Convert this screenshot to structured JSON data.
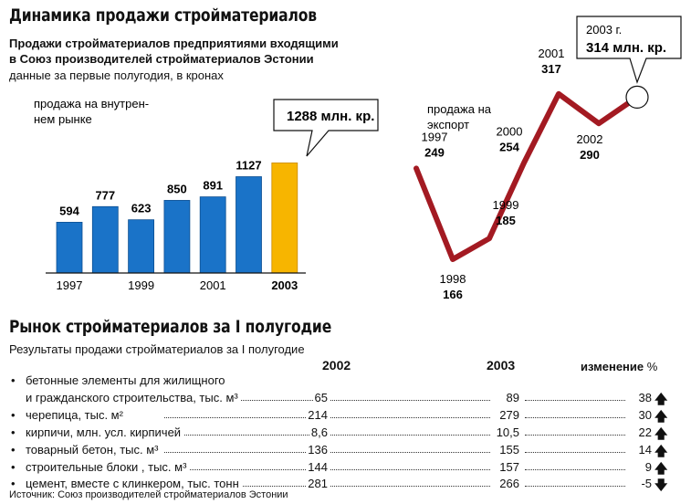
{
  "header": {
    "title": "Динамика продажи стройматериалов",
    "subtitle_line1": "Продажи стройматериалов предприятиями входящими",
    "subtitle_line2": "в Союз производителей стройматериалов Эстонии",
    "note": "данные за первые полугодия, в кронах"
  },
  "chart_data": [
    {
      "type": "bar",
      "label_line1": "продажа на внутрен-",
      "label_line2": "нем рынке",
      "categories": [
        "1997",
        "1998",
        "1999",
        "2000",
        "2001",
        "2002",
        "2003"
      ],
      "x_tick_labels": [
        "1997",
        "",
        "1999",
        "",
        "2001",
        "",
        "2003"
      ],
      "values": [
        594,
        777,
        623,
        850,
        891,
        1127,
        1288
      ],
      "value_labels": [
        "594",
        "777",
        "623",
        "850",
        "891",
        "1127",
        ""
      ],
      "callout": "1288 млн. кр.",
      "ylim": [
        0,
        1300
      ],
      "colors": {
        "bar": "#1a73c8",
        "highlight": "#f7b500"
      }
    },
    {
      "type": "line",
      "label_line1": "продажа на",
      "label_line2": "экспорт",
      "x": [
        "1997",
        "1998",
        "1999",
        "2000",
        "2001",
        "2002",
        "2003"
      ],
      "y": [
        249,
        166,
        185,
        254,
        317,
        290,
        314
      ],
      "point_labels": [
        {
          "year": "1997",
          "value": "249"
        },
        {
          "year": "1998",
          "value": "166"
        },
        {
          "year": "1999",
          "value": "185"
        },
        {
          "year": "2000",
          "value": "254"
        },
        {
          "year": "2001",
          "value": "317"
        },
        {
          "year": "2002",
          "value": "290"
        },
        {
          "year": "",
          "value": ""
        }
      ],
      "callout_line1": "2003 г.",
      "callout_line2": "314 млн. кр.",
      "ylim": [
        150,
        330
      ],
      "colors": {
        "line": "#a31a22"
      }
    }
  ],
  "market": {
    "title": "Рынок стройматериалов за I полугодие",
    "subtitle": "Результаты продажи стройматериалов за I полугодие",
    "col_2002": "2002",
    "col_2003": "2003",
    "col_change": "изменение",
    "col_change_unit": "%",
    "rows": [
      {
        "label": "бетонные элементы для жилищного",
        "bullet": true
      },
      {
        "label": "и гражданского строительства, тыс. м³",
        "v2002": "65",
        "v2003": "89",
        "change": "38",
        "dir": "up"
      },
      {
        "label": "черепица, тыс. м²",
        "v2002": "214",
        "v2003": "279",
        "change": "30",
        "dir": "up",
        "bullet": true
      },
      {
        "label": "кирпичи, млн. усл. кирпичей",
        "v2002": "8,6",
        "v2003": "10,5",
        "change": "22",
        "dir": "up",
        "bullet": true
      },
      {
        "label": "товарный бетон, тыс. м³",
        "v2002": "136",
        "v2003": "155",
        "change": "14",
        "dir": "up",
        "bullet": true
      },
      {
        "label": "строительные блоки , тыс. м³",
        "v2002": "144",
        "v2003": "157",
        "change": "9",
        "dir": "up",
        "bullet": true
      },
      {
        "label": "цемент, вместе с клинкером, тыс. тонн",
        "v2002": "281",
        "v2003": "266",
        "change": "-5",
        "dir": "down",
        "bullet": true
      }
    ],
    "source": "Источник: Союз производителей стройматериалов Эстонии"
  }
}
